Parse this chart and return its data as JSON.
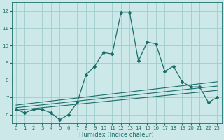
{
  "title": "",
  "xlabel": "Humidex (Indice chaleur)",
  "bg_color": "#cce8e8",
  "grid_color": "#a0cccc",
  "line_color": "#1a6e6a",
  "xlim": [
    -0.5,
    23.5
  ],
  "ylim": [
    5.5,
    12.5
  ],
  "yticks": [
    6,
    7,
    8,
    9,
    10,
    11,
    12
  ],
  "xticks": [
    0,
    1,
    2,
    3,
    4,
    5,
    6,
    7,
    8,
    9,
    10,
    11,
    12,
    13,
    14,
    15,
    16,
    17,
    18,
    19,
    20,
    21,
    22,
    23
  ],
  "line1_x": [
    0,
    1,
    2,
    3,
    4,
    5,
    6,
    7,
    8,
    9,
    10,
    11,
    12,
    13,
    14,
    15,
    16,
    17,
    18,
    19,
    20,
    21,
    22,
    23
  ],
  "line1_y": [
    6.3,
    6.1,
    6.3,
    6.3,
    6.1,
    5.7,
    6.0,
    6.7,
    8.3,
    8.8,
    9.6,
    9.5,
    11.9,
    11.9,
    9.1,
    10.2,
    10.1,
    8.5,
    8.8,
    7.9,
    7.6,
    7.6,
    6.7,
    7.0
  ],
  "line2_x": [
    0,
    23
  ],
  "line2_y": [
    6.25,
    7.4
  ],
  "line3_x": [
    0,
    23
  ],
  "line3_y": [
    6.4,
    7.65
  ],
  "line4_x": [
    0,
    23
  ],
  "line4_y": [
    6.55,
    7.9
  ],
  "marker": "D",
  "markersize": 2.0,
  "linewidth": 0.9,
  "flat_linewidth": 0.8,
  "tick_fontsize": 5.0,
  "xlabel_fontsize": 6.0
}
